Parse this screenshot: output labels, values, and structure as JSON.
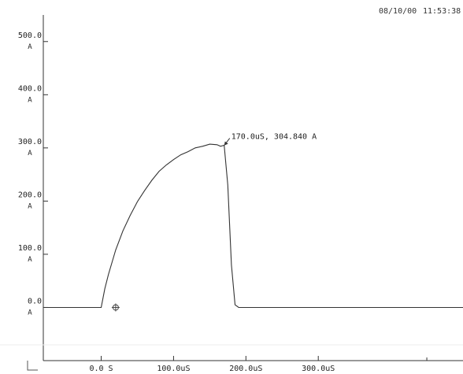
{
  "header": {
    "date": "08/10/00",
    "time": "11:53:38"
  },
  "chart_data": {
    "type": "line",
    "title": "",
    "xlabel": "",
    "ylabel": "",
    "xlim": [
      -80,
      500
    ],
    "ylim": [
      -100,
      550
    ],
    "y_ticks": [
      {
        "value": 500,
        "num": "500.0",
        "unit": "A"
      },
      {
        "value": 400,
        "num": "400.0",
        "unit": "A"
      },
      {
        "value": 300,
        "num": "300.0",
        "unit": "A"
      },
      {
        "value": 200,
        "num": "200.0",
        "unit": "A"
      },
      {
        "value": 100,
        "num": "100.0",
        "unit": "A"
      },
      {
        "value": 0,
        "num": "0.0",
        "unit": "A"
      }
    ],
    "x_ticks": [
      {
        "value": 0,
        "label": "0.0 S"
      },
      {
        "value": 100,
        "label": "100.0uS"
      },
      {
        "value": 200,
        "label": "200.0uS"
      },
      {
        "value": 300,
        "label": "300.0uS"
      }
    ],
    "series": [
      {
        "x": [
          -80,
          0,
          5,
          10,
          20,
          30,
          40,
          50,
          60,
          70,
          80,
          90,
          100,
          110,
          120,
          130,
          140,
          150,
          160,
          165,
          170,
          175,
          180,
          185,
          190,
          195,
          200,
          210,
          250,
          300,
          350,
          400,
          450,
          500
        ],
        "y": [
          0,
          0,
          35,
          62,
          108,
          144,
          173,
          199,
          220,
          239,
          256,
          268,
          278,
          287,
          293,
          300,
          303,
          307,
          306,
          303,
          305,
          230,
          80,
          5,
          0,
          0,
          0,
          0,
          0,
          0,
          0,
          0,
          0,
          0
        ]
      }
    ],
    "annotation": {
      "x": 170,
      "y": 304.84,
      "text": "170.0uS, 304.840 A"
    },
    "cursor_marker": {
      "x": 20,
      "y": 0
    },
    "grid": false
  }
}
